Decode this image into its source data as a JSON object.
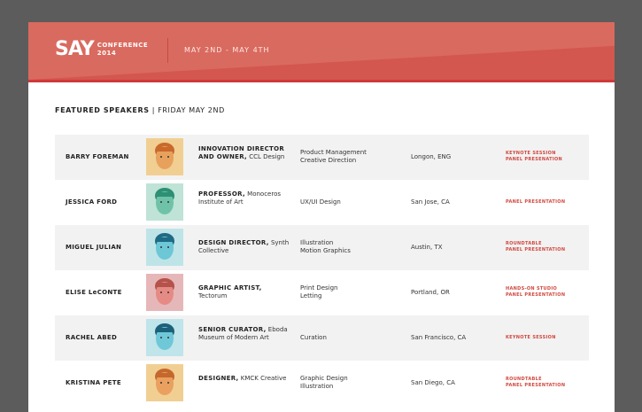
{
  "header": {
    "logo": "SAY",
    "logo_sub_1": "CONFERENCE",
    "logo_sub_2": "2014",
    "dates": "MAY 2ND - MAY 4TH",
    "brand_color": "#d96a5f"
  },
  "section": {
    "title": "FEATURED SPEAKERS",
    "separator": "|",
    "day": "FRIDAY MAY 2ND"
  },
  "speakers": [
    {
      "name": "BARRY FOREMAN",
      "role": "INNOVATION DIRECTOR AND OWNER,",
      "org": "CCL Design",
      "skills": [
        "Product Management",
        "Creative Direction"
      ],
      "location": "Longon, ENG",
      "sessions": [
        "KEYNOTE SESSION",
        "PANEL PRESENATION"
      ],
      "avatar_bg": "#f1cf93",
      "skin": "#e7a15c",
      "hair": "#c9692c"
    },
    {
      "name": "JESSICA FORD",
      "role": "PROFESSOR,",
      "org": "Monoceros Institute of Art",
      "skills": [
        "UX/UI Design"
      ],
      "location": "San Jose, CA",
      "sessions": [
        "PANEL PRESENTATION"
      ],
      "avatar_bg": "#bfe3d6",
      "skin": "#6fc2a8",
      "hair": "#2d8f74"
    },
    {
      "name": "MIGUEL JULIAN",
      "role": "DESIGN DIRECTOR,",
      "org": "Synth Collective",
      "skills": [
        "Illustration",
        "Motion Graphics"
      ],
      "location": "Austin, TX",
      "sessions": [
        "ROUNDTABLE",
        "PANEL PRESENTATION"
      ],
      "avatar_bg": "#bfe4e8",
      "skin": "#6cc7d6",
      "hair": "#1f6a84"
    },
    {
      "name": "ELISE LeCONTE",
      "role": "GRAPHIC ARTIST,",
      "org": "Tectorum",
      "skills": [
        "Print Design",
        "Letting"
      ],
      "location": "Portland, OR",
      "sessions": [
        "HANDS-ON STUDIO",
        "PANEL PRESENTATION"
      ],
      "avatar_bg": "#e6b7b8",
      "skin": "#e58a84",
      "hair": "#b4524b"
    },
    {
      "name": "RACHEL ABED",
      "role": "SENIOR CURATOR,",
      "org": "Eboda Museum of Modern Art",
      "skills": [
        "Curation"
      ],
      "location": "San Francisco, CA",
      "sessions": [
        "KEYNOTE SESSION"
      ],
      "avatar_bg": "#bfe4ea",
      "skin": "#6fc8d8",
      "hair": "#1d6179"
    },
    {
      "name": "KRISTINA PETE",
      "role": "DESIGNER,",
      "org": "KMCK Creative",
      "skills": [
        "Graphic Design",
        "Illustration"
      ],
      "location": "San Diego, CA",
      "sessions": [
        "ROUNDTABLE",
        "PANEL PRESENTATION"
      ],
      "avatar_bg": "#f1cf93",
      "skin": "#eaa05e",
      "hair": "#c5682d"
    }
  ]
}
